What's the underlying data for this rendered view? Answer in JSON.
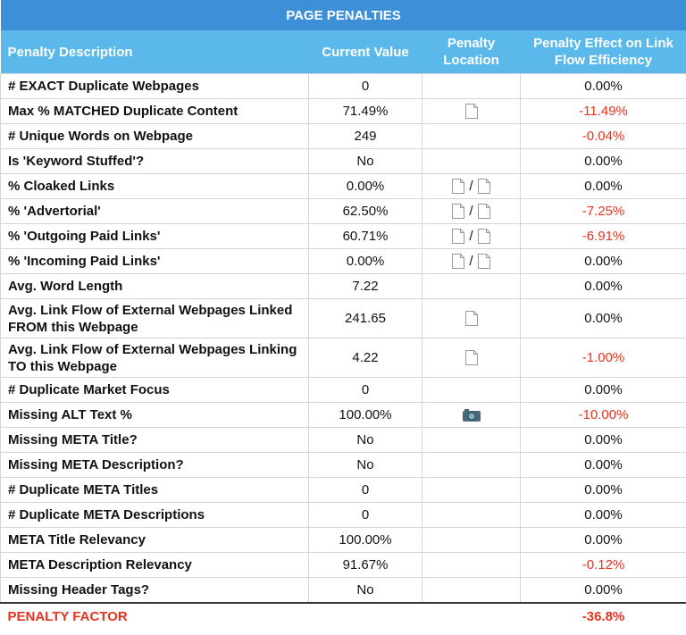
{
  "title": "PAGE PENALTIES",
  "headers": [
    "Penalty Description",
    "Current Value",
    "Penalty Location",
    "Penalty Effect on Link Flow Efficiency"
  ],
  "rows": [
    {
      "description": "# EXACT Duplicate Webpages",
      "current_value": "0",
      "effect": "0.00%"
    },
    {
      "description": "Max % MATCHED Duplicate Content",
      "current_value": "71.49%",
      "effect": "-11.49%"
    },
    {
      "description": "# Unique Words on Webpage",
      "current_value": "249",
      "effect": "-0.04%"
    },
    {
      "description": "Is 'Keyword Stuffed'?",
      "current_value": "No",
      "effect": "0.00%"
    },
    {
      "description": "% Cloaked Links",
      "current_value": "0.00%",
      "location": "/",
      "effect": "0.00%"
    },
    {
      "description": "% 'Advertorial'",
      "current_value": "62.50%",
      "location": "/",
      "effect": "-7.25%"
    },
    {
      "description": "% 'Outgoing Paid Links'",
      "current_value": "60.71%",
      "location": "/",
      "effect": "-6.91%"
    },
    {
      "description": "% 'Incoming Paid Links'",
      "current_value": "0.00%",
      "location": "/",
      "effect": "0.00%"
    },
    {
      "description": "Avg. Word Length",
      "current_value": "7.22",
      "effect": "0.00%"
    },
    {
      "description": "Avg. Link Flow of External Webpages Linked FROM this Webpage",
      "current_value": "241.65",
      "effect": "0.00%"
    },
    {
      "description": "Avg. Link Flow of External Webpages Linking TO this Webpage",
      "current_value": "4.22",
      "effect": "-1.00%"
    },
    {
      "description": "# Duplicate Market Focus",
      "current_value": "0",
      "effect": "0.00%"
    },
    {
      "description": "Missing ALT Text %",
      "current_value": "100.00%",
      "effect": "-10.00%"
    },
    {
      "description": "Missing META Title?",
      "current_value": "No",
      "effect": "0.00%"
    },
    {
      "description": "Missing META Description?",
      "current_value": "No",
      "effect": "0.00%"
    },
    {
      "description": "# Duplicate META Titles",
      "current_value": "0",
      "effect": "0.00%"
    },
    {
      "description": "# Duplicate META Descriptions",
      "current_value": "0",
      "effect": "0.00%"
    },
    {
      "description": "META Title Relevancy",
      "current_value": "100.00%",
      "effect": "0.00%"
    },
    {
      "description": "META Description Relevancy",
      "current_value": "91.67%",
      "effect": "-0.12%"
    },
    {
      "description": "Missing Header Tags?",
      "current_value": "No",
      "effect": "0.00%"
    }
  ],
  "footer": {
    "label": "PENALTY FACTOR",
    "value": "-36.8%"
  }
}
